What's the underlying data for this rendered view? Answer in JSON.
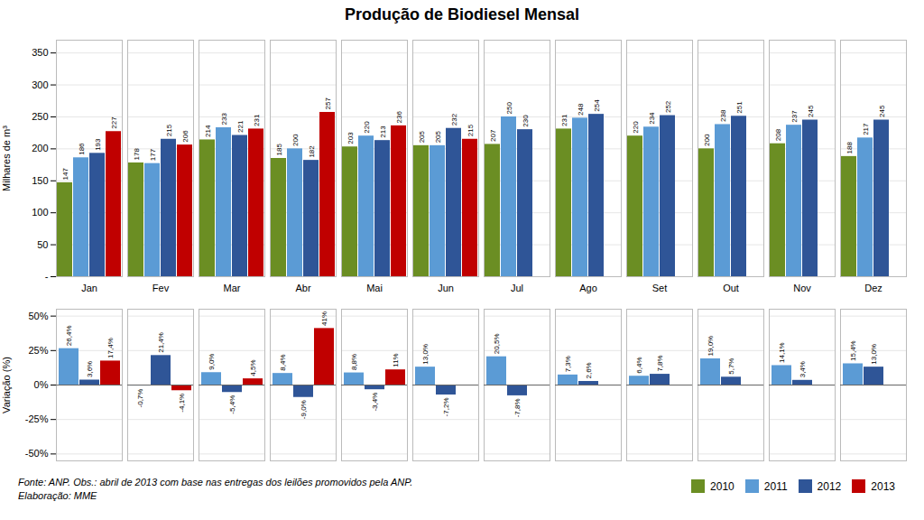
{
  "chart_data": [
    {
      "type": "bar",
      "title": "Produção de Biodiesel Mensal",
      "categories": [
        "Jan",
        "Fev",
        "Mar",
        "Abr",
        "Mai",
        "Jun",
        "Jul",
        "Ago",
        "Set",
        "Out",
        "Nov",
        "Dez"
      ],
      "series": [
        {
          "name": "2010",
          "color": "#6b8e23",
          "values": [
            147,
            178,
            214,
            185,
            203,
            205,
            207,
            231,
            220,
            200,
            208,
            188
          ]
        },
        {
          "name": "2011",
          "color": "#5b9bd5",
          "values": [
            186,
            177,
            233,
            200,
            220,
            205,
            250,
            248,
            234,
            238,
            237,
            217
          ]
        },
        {
          "name": "2012",
          "color": "#2f5597",
          "values": [
            193,
            215,
            221,
            182,
            213,
            232,
            230,
            254,
            252,
            251,
            245,
            245
          ]
        },
        {
          "name": "2013",
          "color": "#c00000",
          "values": [
            227,
            206,
            231,
            257,
            236,
            215,
            null,
            null,
            null,
            null,
            null,
            null
          ]
        }
      ],
      "ylabel": "Milhares de m³",
      "ylim": [
        0,
        370
      ],
      "yticks": [
        {
          "value": 0,
          "label": "-"
        },
        50,
        100,
        150,
        200,
        250,
        300,
        350
      ],
      "grid": true,
      "data_labels": true,
      "legend": "lower right"
    },
    {
      "type": "bar",
      "categories": [
        "Jan",
        "Fev",
        "Mar",
        "Abr",
        "Mai",
        "Jun",
        "Jul",
        "Ago",
        "Set",
        "Out",
        "Nov",
        "Dez"
      ],
      "series": [
        {
          "name": "2011",
          "color": "#5b9bd5",
          "values": [
            26.4,
            -0.7,
            9.0,
            8.4,
            8.8,
            13.0,
            20.5,
            7.3,
            6.4,
            19.0,
            14.1,
            15.4
          ],
          "value_labels": [
            "26,4%",
            "-0,7%",
            "9,0%",
            "8,4%",
            "8,8%",
            "13,0%",
            "20,5%",
            "7,3%",
            "6,4%",
            "19,0%",
            "14,1%",
            "15,4%"
          ]
        },
        {
          "name": "2012",
          "color": "#2f5597",
          "values": [
            3.6,
            21.4,
            -5.4,
            -9.0,
            -3.4,
            -7.2,
            -7.8,
            2.6,
            7.8,
            5.7,
            3.4,
            13.0
          ],
          "value_labels": [
            "3,6%",
            "21,4%",
            "-5,4%",
            "-9,0%",
            "-3,4%",
            "-7,2%",
            "-7,8%",
            "2,6%",
            "7,8%",
            "5,7%",
            "3,4%",
            "13,0%"
          ]
        },
        {
          "name": "2013",
          "color": "#c00000",
          "values": [
            17.4,
            -4.1,
            4.5,
            41.0,
            11.0,
            null,
            null,
            null,
            null,
            null,
            null,
            null
          ],
          "value_labels": [
            "17,4%",
            "-4,1%",
            "4,5%",
            "41%",
            "11%",
            null,
            null,
            null,
            null,
            null,
            null,
            null
          ]
        }
      ],
      "ylabel": "Variação (%)",
      "ylim": [
        -55,
        55
      ],
      "yticks": [
        {
          "value": -50,
          "label": "-50%"
        },
        {
          "value": -25,
          "label": "-25%"
        },
        {
          "value": 0,
          "label": "0%"
        },
        {
          "value": 25,
          "label": "25%"
        },
        {
          "value": 50,
          "label": "50%"
        }
      ],
      "grid": true,
      "data_labels": true,
      "tick_labels": "y",
      "annotations": [
        "Fonte: ANP. Obs.: abril de 2013 com base nas entregas dos leilões promovidos pela ANP.",
        "Elaboração: MME"
      ]
    }
  ]
}
